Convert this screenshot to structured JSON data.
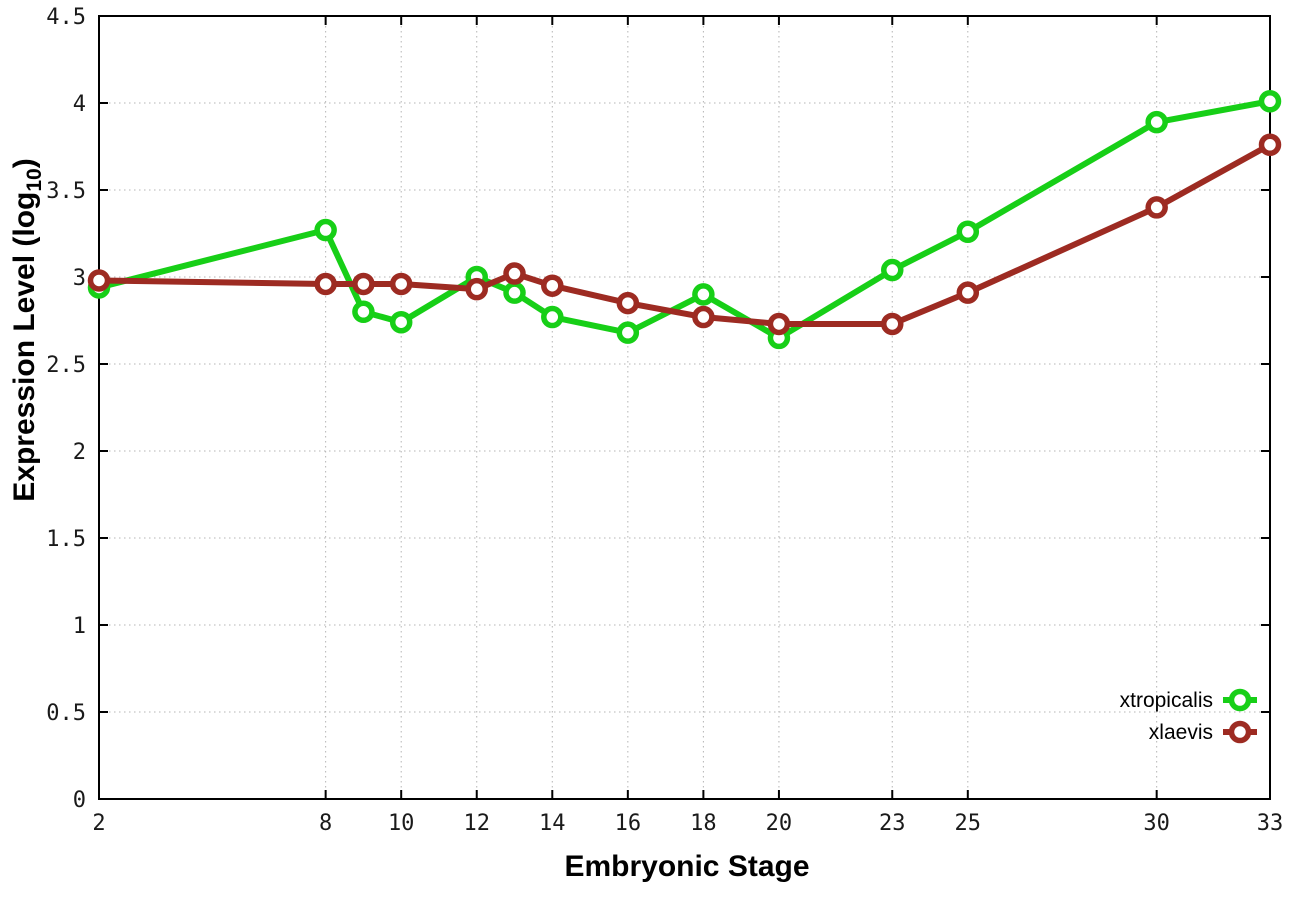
{
  "figure": {
    "background": "#ffffff",
    "ylabel_parts": {
      "main": "Expression Level (log",
      "sub": "10",
      "suffix": ")"
    }
  },
  "chart_data": {
    "type": "line",
    "title": "",
    "xlabel": "Embryonic Stage",
    "ylabel": "Expression Level (log10)",
    "xlim": [
      2,
      33
    ],
    "ylim": [
      0,
      4.5
    ],
    "x_ticks": [
      2,
      8,
      10,
      12,
      14,
      16,
      18,
      20,
      23,
      25,
      30,
      33
    ],
    "y_ticks": [
      0,
      0.5,
      1,
      1.5,
      2,
      2.5,
      3,
      3.5,
      4,
      4.5
    ],
    "grid": true,
    "legend_position": "inside-right-lower",
    "x": [
      2,
      8,
      9,
      10,
      12,
      13,
      14,
      16,
      18,
      20,
      23,
      25,
      30,
      33
    ],
    "series": [
      {
        "name": "xtropicalis",
        "color": "#17cf17",
        "values": [
          2.94,
          3.27,
          2.8,
          2.74,
          3.0,
          2.91,
          2.77,
          2.68,
          2.9,
          2.65,
          3.04,
          3.26,
          3.89,
          4.01
        ]
      },
      {
        "name": "xlaevis",
        "color": "#9d2b22",
        "values": [
          2.98,
          2.96,
          2.96,
          2.96,
          2.93,
          3.02,
          2.95,
          2.85,
          2.77,
          2.73,
          2.73,
          2.91,
          3.4,
          3.76
        ]
      }
    ],
    "style": {
      "grid_color": "#b4b4b4",
      "border_color": "#000000",
      "marker_fill": "#ffffff"
    }
  }
}
